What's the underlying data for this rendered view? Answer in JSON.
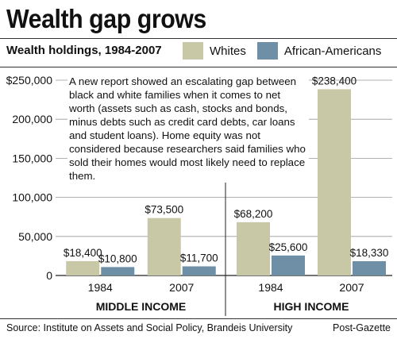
{
  "header": {
    "title": "Wealth gap grows",
    "subtitle": "Wealth holdings, 1984-2007"
  },
  "legend": [
    {
      "label": "Whites",
      "color": "#c8c8a6"
    },
    {
      "label": "African-Americans",
      "color": "#6f8fa6"
    }
  ],
  "note": "A new report showed an escalating gap between black and white families when it comes to net worth (assets such as cash, stocks and bonds, minus debts such as credit card debts, car loans and student loans). Home equity was not considered because researchers said families who sold their homes would most likely need to replace them.",
  "footer": {
    "source": "Source: Institute on Assets and Social Policy, Brandeis University",
    "credit": "Post-Gazette"
  },
  "chart_data": {
    "type": "bar",
    "title": "Wealth gap grows",
    "subtitle": "Wealth holdings, 1984-2007",
    "ylim": [
      0,
      250000
    ],
    "yticks": [
      {
        "value": 0,
        "label": "0"
      },
      {
        "value": 50000,
        "label": "50,000"
      },
      {
        "value": 100000,
        "label": "100,000"
      },
      {
        "value": 150000,
        "label": "150,000"
      },
      {
        "value": 200000,
        "label": "200,000"
      },
      {
        "value": 250000,
        "label": "$250,000"
      }
    ],
    "grid": true,
    "legend_position": "top",
    "series_names": [
      "Whites",
      "African-Americans"
    ],
    "series_colors": [
      "#c8c8a6",
      "#6f8fa6"
    ],
    "panels": [
      {
        "group": "MIDDLE INCOME",
        "categories": [
          "1984",
          "2007"
        ],
        "series": [
          {
            "name": "Whites",
            "values": [
              18400,
              73500
            ],
            "labels": [
              "$18,400",
              "$73,500"
            ]
          },
          {
            "name": "African-Americans",
            "values": [
              10800,
              11700
            ],
            "labels": [
              "$10,800",
              "$11,700"
            ]
          }
        ]
      },
      {
        "group": "HIGH INCOME",
        "categories": [
          "1984",
          "2007"
        ],
        "series": [
          {
            "name": "Whites",
            "values": [
              68200,
              238400
            ],
            "labels": [
              "$68,200",
              "$238,400"
            ]
          },
          {
            "name": "African-Americans",
            "values": [
              25600,
              18330
            ],
            "labels": [
              "$25,600",
              "$18,330"
            ]
          }
        ]
      }
    ]
  }
}
